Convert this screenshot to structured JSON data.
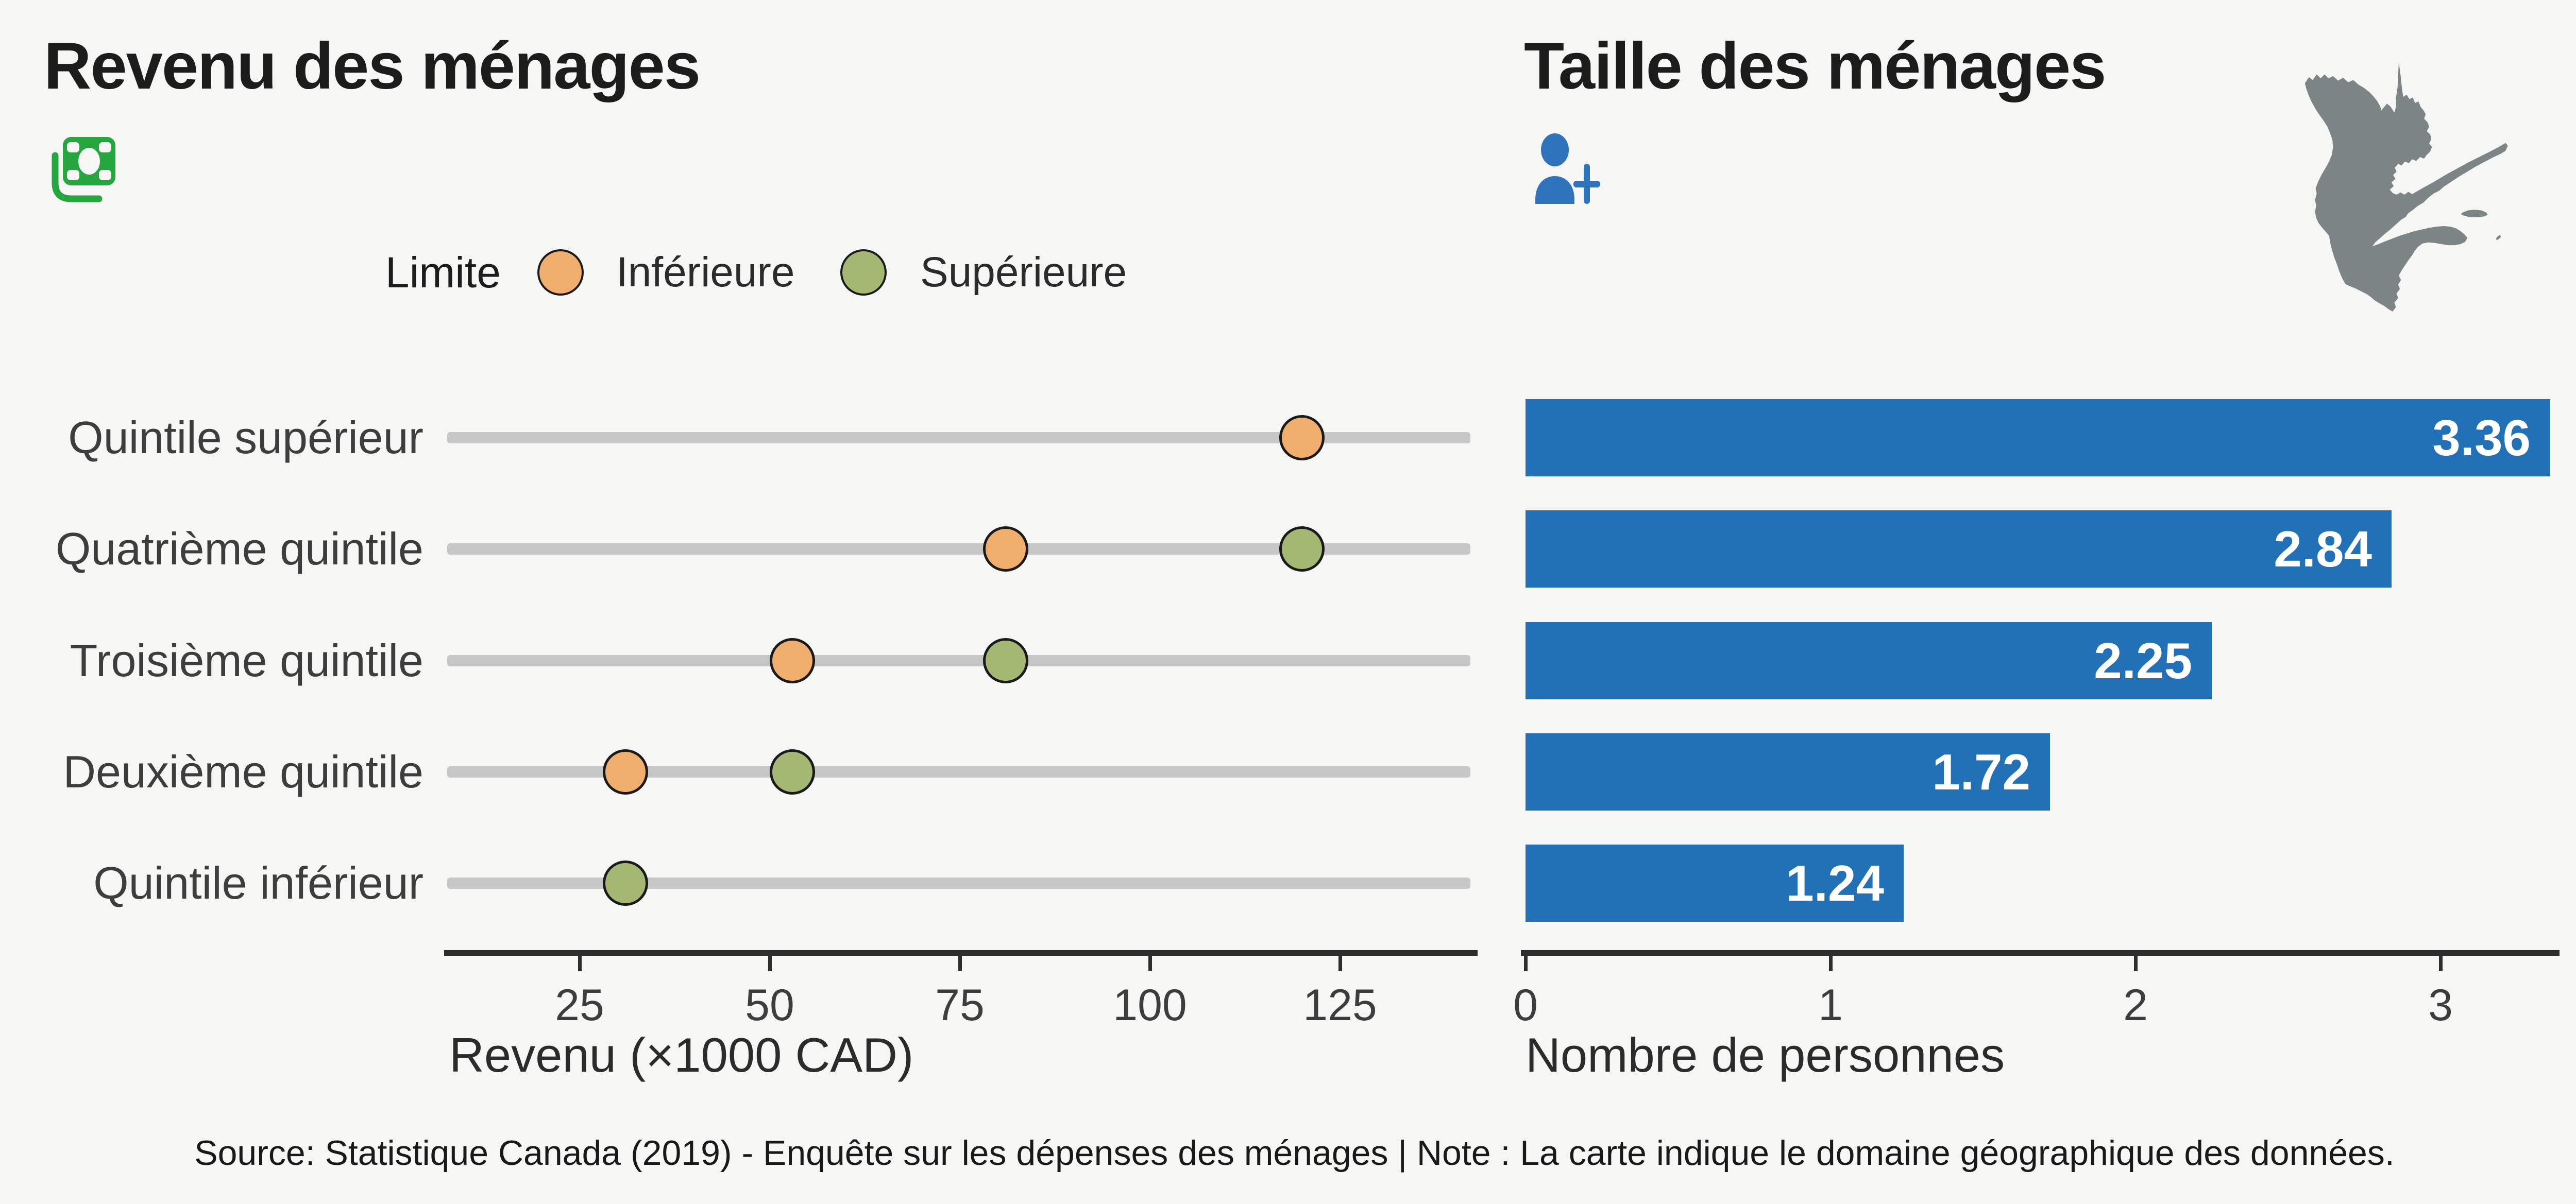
{
  "income_panel": {
    "title": "Revenu des ménages",
    "legend_title": "Limite",
    "axis_label": "Revenu (×1000 CAD)"
  },
  "size_panel": {
    "title": "Taille des ménages",
    "axis_label": "Nombre de personnes"
  },
  "icons": {
    "income": "money-banknote-icon",
    "size": "person-plus-icon",
    "map": "quebec-province-map"
  },
  "colors": {
    "background": "#f6f6f5",
    "bar_blue": "#2271b7",
    "limit_lower_orange": "#f0ae6d",
    "limit_upper_green": "#a4b873",
    "dot_outline": "#1a1a1a",
    "range_track_gray": "#c6c6c6",
    "axis_line": "#2d2d2d",
    "text_dark": "#1c1c1c",
    "text_gray": "#3d3d3d",
    "map_gray": "#7c8485",
    "money_icon_green": "#26a63e",
    "person_icon_blue": "#2d74bd",
    "bar_value_text": "#ffffff"
  },
  "source_note": "Source: Statistique Canada (2019) - Enquête sur les dépenses des ménages | Note : La carte indique le domaine géographique des données.",
  "chart_data": [
    {
      "type": "scatter",
      "subtype": "dot-range-plot",
      "title": "Revenu des ménages",
      "categories": [
        "Quintile supérieur",
        "Quatrième quintile",
        "Troisième quintile",
        "Deuxième quintile",
        "Quintile inférieur"
      ],
      "series": [
        {
          "name": "Inférieure",
          "color": "#f0ae6d",
          "values": [
            120,
            81,
            53,
            31,
            null
          ]
        },
        {
          "name": "Supérieure",
          "color": "#a4b873",
          "values": [
            null,
            120,
            81,
            53,
            31
          ]
        }
      ],
      "xlabel": "Revenu (×1000 CAD)",
      "x_ticks": [
        25,
        50,
        75,
        100,
        125
      ],
      "xlim": [
        7,
        142
      ],
      "grid": false,
      "legend_position": "top"
    },
    {
      "type": "bar",
      "orientation": "horizontal",
      "title": "Taille des ménages",
      "categories": [
        "Quintile supérieur",
        "Quatrième quintile",
        "Troisième quintile",
        "Deuxième quintile",
        "Quintile inférieur"
      ],
      "values": [
        3.36,
        2.84,
        2.25,
        1.72,
        1.24
      ],
      "value_labels": [
        "3.36",
        "2.84",
        "2.25",
        "1.72",
        "1.24"
      ],
      "xlabel": "Nombre de personnes",
      "x_ticks": [
        0,
        1,
        2,
        3
      ],
      "xlim": [
        0,
        3.4
      ],
      "grid": false
    }
  ]
}
